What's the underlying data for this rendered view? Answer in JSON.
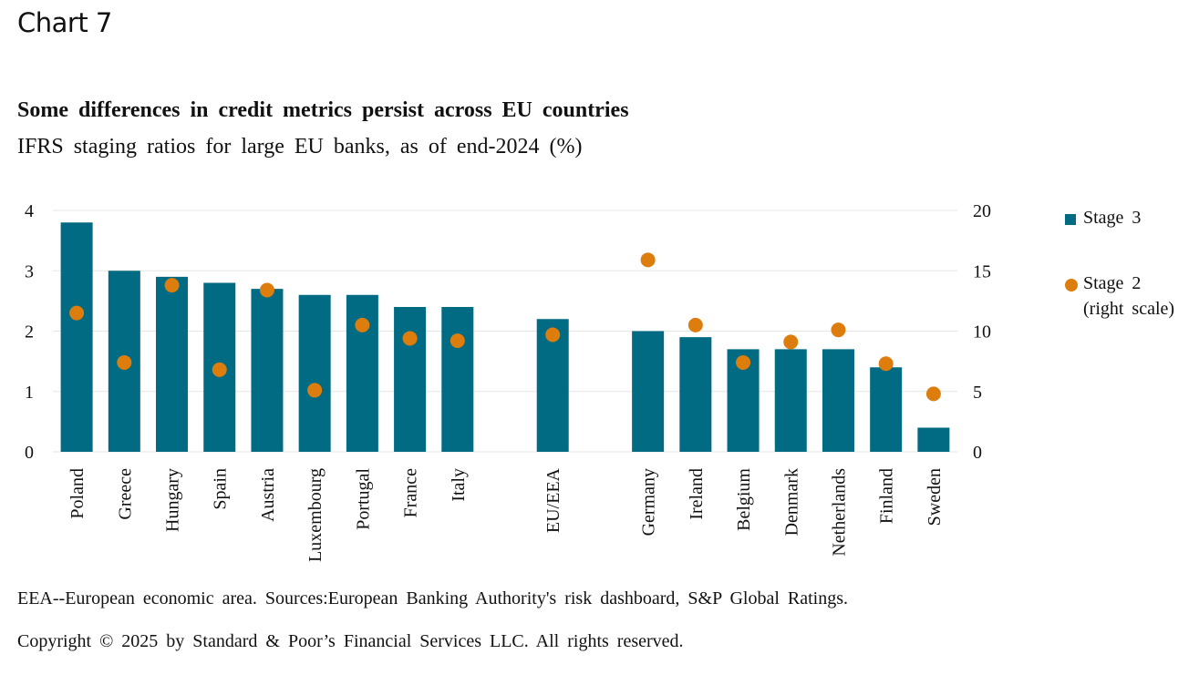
{
  "header": {
    "chart_number": "Chart 7",
    "title": "Some differences in credit metrics persist across EU countries",
    "subtitle": "IFRS staging ratios for large EU banks, as of end-2024 (%)"
  },
  "legend": {
    "stage3": "Stage 3",
    "stage2_line1": "Stage 2",
    "stage2_line2": "(right scale)"
  },
  "footnote": "EEA--European economic area. Sources:European Banking Authority's risk dashboard, S&P Global Ratings.",
  "copyright": "Copyright © 2025 by Standard & Poor’s Financial Services LLC. All rights reserved.",
  "colors": {
    "bar": "#006b82",
    "dot": "#dd7d0e",
    "grid": "#e6e6e6"
  },
  "chart_data": {
    "type": "bar",
    "categories": [
      "Poland",
      "Greece",
      "Hungary",
      "Spain",
      "Austria",
      "Luxembourg",
      "Portugal",
      "France",
      "Italy",
      "",
      "EU/EEA",
      "",
      "Germany",
      "Ireland",
      "Belgium",
      "Denmark",
      "Netherlands",
      "Finland",
      "Sweden"
    ],
    "series": [
      {
        "name": "Stage 3",
        "axis": "left",
        "render": "bar",
        "values": [
          3.8,
          3.0,
          2.9,
          2.8,
          2.7,
          2.6,
          2.6,
          2.4,
          2.4,
          null,
          2.2,
          null,
          2.0,
          1.9,
          1.7,
          1.7,
          1.7,
          1.4,
          0.4
        ]
      },
      {
        "name": "Stage 2 (right scale)",
        "axis": "right",
        "render": "dot",
        "values": [
          11.5,
          7.4,
          13.8,
          6.8,
          13.4,
          5.1,
          10.5,
          9.4,
          9.2,
          null,
          9.7,
          null,
          15.9,
          10.5,
          7.4,
          9.1,
          10.1,
          7.3,
          4.8
        ]
      }
    ],
    "y_left": {
      "ylim": [
        0,
        4
      ],
      "ticks": [
        0,
        1,
        2,
        3,
        4
      ]
    },
    "y_right": {
      "ylim": [
        0,
        20
      ],
      "ticks": [
        0,
        5,
        10,
        15,
        20
      ]
    },
    "grid": true,
    "legend_position": "right"
  }
}
